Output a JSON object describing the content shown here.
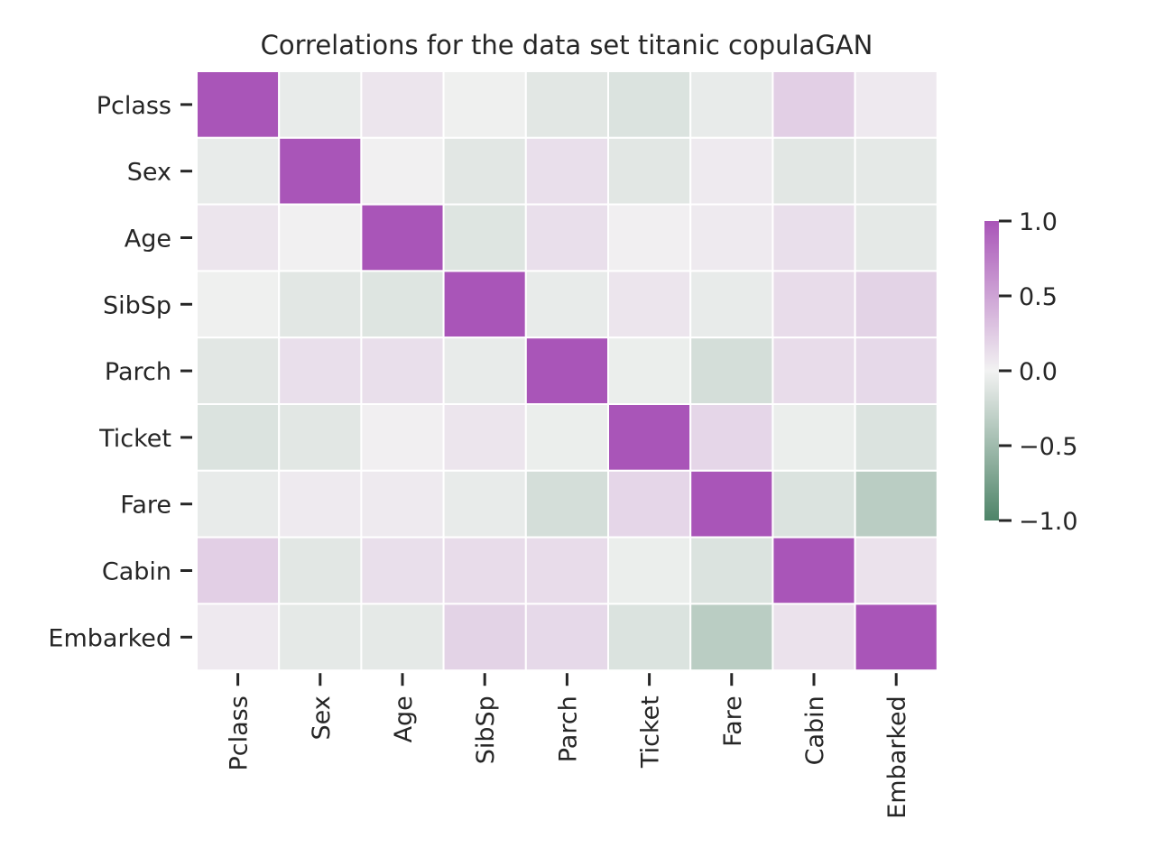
{
  "chart_data": {
    "type": "heatmap",
    "title": "Correlations for the data set titanic copulaGAN",
    "row_labels": [
      "Pclass",
      "Sex",
      "Age",
      "SibSp",
      "Parch",
      "Ticket",
      "Fare",
      "Cabin",
      "Embarked"
    ],
    "col_labels": [
      "Pclass",
      "Sex",
      "Age",
      "SibSp",
      "Parch",
      "Ticket",
      "Fare",
      "Cabin",
      "Embarked"
    ],
    "values": [
      [
        1.0,
        -0.06,
        0.08,
        -0.02,
        -0.1,
        -0.14,
        -0.06,
        0.22,
        0.06
      ],
      [
        -0.06,
        1.0,
        0.01,
        -0.1,
        0.12,
        -0.1,
        0.05,
        -0.1,
        -0.08
      ],
      [
        0.08,
        0.01,
        1.0,
        -0.12,
        0.12,
        0.02,
        0.05,
        0.12,
        -0.08
      ],
      [
        -0.02,
        -0.1,
        -0.12,
        1.0,
        -0.06,
        0.08,
        -0.06,
        0.14,
        0.2
      ],
      [
        -0.1,
        0.12,
        0.12,
        -0.06,
        1.0,
        -0.04,
        -0.18,
        0.14,
        0.16
      ],
      [
        -0.14,
        -0.1,
        0.02,
        0.08,
        -0.04,
        1.0,
        0.18,
        -0.04,
        -0.14
      ],
      [
        -0.06,
        0.05,
        0.05,
        -0.06,
        -0.18,
        0.18,
        1.0,
        -0.14,
        -0.34
      ],
      [
        0.22,
        -0.1,
        0.12,
        0.14,
        0.14,
        -0.04,
        -0.14,
        1.0,
        0.1
      ],
      [
        0.06,
        -0.08,
        -0.08,
        0.2,
        0.16,
        -0.14,
        -0.34,
        0.1,
        1.0
      ]
    ],
    "vmin": -1.0,
    "vmax": 1.0,
    "colormap": {
      "negative": "#4e8468",
      "center": "#f2f2f2",
      "positive": "#a955b8"
    },
    "colorbar_ticks": [
      1.0,
      0.5,
      0.0,
      -0.5,
      -1.0
    ],
    "colorbar_tick_labels": [
      "1.0",
      "0.5",
      "0.0",
      "−0.5",
      "−1.0"
    ],
    "grid": false
  }
}
